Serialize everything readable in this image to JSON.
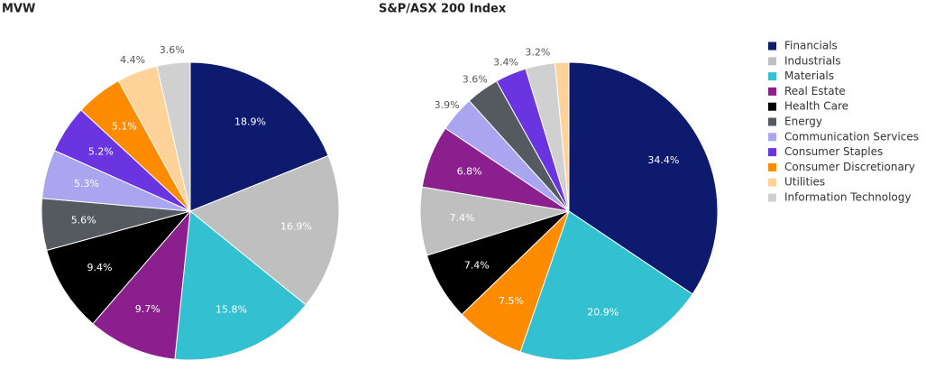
{
  "chart_data": [
    {
      "type": "pie",
      "title": "MVW",
      "categories": [
        "Financials",
        "Industrials",
        "Materials",
        "Real Estate",
        "Health Care",
        "Energy",
        "Communication Services",
        "Consumer Staples",
        "Consumer Discretionary",
        "Utilities",
        "Information Technology"
      ],
      "colors": [
        "#0d1a6e",
        "#bfbfbf",
        "#33c1d1",
        "#8b1f8e",
        "#000000",
        "#545a60",
        "#a9a5ef",
        "#6a35e0",
        "#ff8c00",
        "#ffd29a",
        "#d0d0d0"
      ],
      "values": [
        18.9,
        16.9,
        15.8,
        9.7,
        9.4,
        5.6,
        5.3,
        5.2,
        5.1,
        4.4,
        3.6
      ],
      "value_labels": [
        "18.9%",
        "16.9%",
        "15.8%",
        "9.7%",
        "9.4%",
        "5.6%",
        "5.3%",
        "5.2%",
        "5.1%",
        "4.4%",
        "3.6%"
      ]
    },
    {
      "type": "pie",
      "title": "S&P/ASX 200 Index",
      "categories": [
        "Financials",
        "Materials",
        "Consumer Discretionary",
        "Health Care",
        "Industrials",
        "Real Estate",
        "Communication Services",
        "Energy",
        "Consumer Staples",
        "Information Technology",
        "Utilities"
      ],
      "colors": [
        "#0d1a6e",
        "#33c1d1",
        "#ff8c00",
        "#000000",
        "#bfbfbf",
        "#8b1f8e",
        "#a9a5ef",
        "#545a60",
        "#6a35e0",
        "#d0d0d0",
        "#ffd29a"
      ],
      "values": [
        34.4,
        20.9,
        7.5,
        7.4,
        7.4,
        6.8,
        3.9,
        3.6,
        3.4,
        3.2,
        1.5
      ],
      "value_labels": [
        "34.4%",
        "20.9%",
        "7.5%",
        "7.4%",
        "7.4%",
        "6.8%",
        "3.9%",
        "3.6%",
        "3.4%",
        "3.2%",
        null
      ]
    }
  ]
}
